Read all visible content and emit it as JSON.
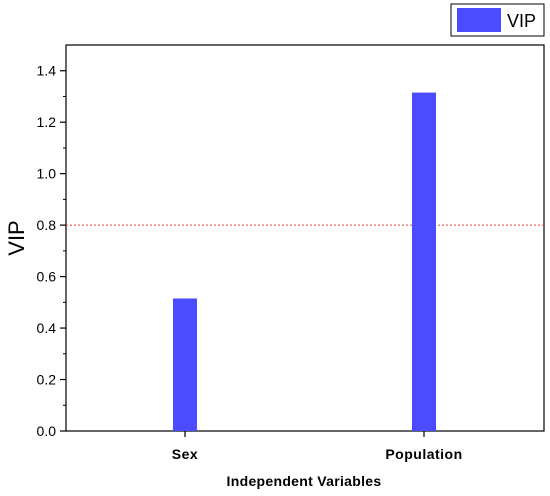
{
  "chart_data": {
    "type": "bar",
    "categories": [
      "Sex",
      "Population"
    ],
    "series": [
      {
        "name": "VIP",
        "values": [
          0.515,
          1.315
        ]
      }
    ],
    "xlabel": "Independent Variables",
    "ylabel": "VIP",
    "ylim": [
      0,
      1.5
    ],
    "yticks": [
      "0.0",
      "0.2",
      "0.4",
      "0.6",
      "0.8",
      "1.0",
      "1.2",
      "1.4"
    ],
    "threshold": 0.8,
    "grid": false,
    "legend_position": "top-right",
    "colors": {
      "bar": "#4b4bff",
      "threshold_line": "#e04040"
    }
  }
}
